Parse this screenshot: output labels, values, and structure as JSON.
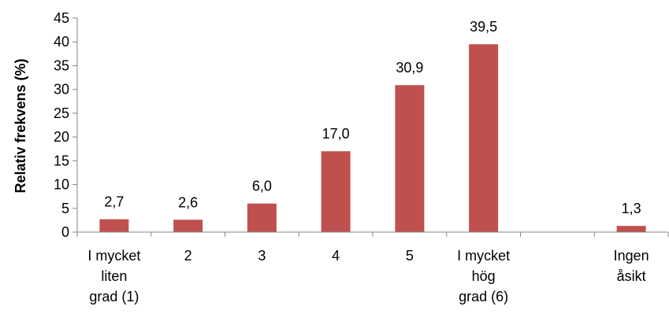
{
  "chart_data": {
    "type": "bar",
    "categories": [
      [
        "I mycket",
        "liten",
        "grad (1)"
      ],
      [
        "2"
      ],
      [
        "3"
      ],
      [
        "4"
      ],
      [
        "5"
      ],
      [
        "I mycket",
        "hög",
        "grad (6)"
      ],
      [
        ""
      ],
      [
        "Ingen",
        "åsikt"
      ]
    ],
    "values": [
      2.7,
      2.6,
      6.0,
      17.0,
      30.9,
      39.5,
      null,
      1.3
    ],
    "data_labels": [
      "2,7",
      "2,6",
      "6,0",
      "17,0",
      "30,9",
      "39,5",
      "",
      "1,3"
    ],
    "ylabel": "Relativ frekvens (%)",
    "xlabel": "",
    "ylim": [
      0,
      45
    ],
    "yticks": [
      0,
      5,
      10,
      15,
      20,
      25,
      30,
      35,
      40,
      45
    ],
    "grid": false,
    "legend": "none",
    "bar_color": "#c0504d",
    "axis_color": "#868686"
  }
}
